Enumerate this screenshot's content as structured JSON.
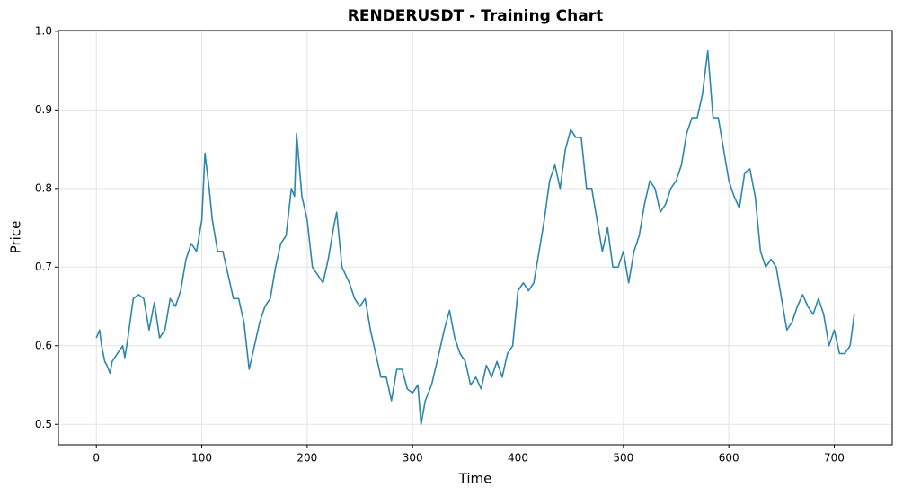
{
  "chart_data": {
    "type": "line",
    "title": "RENDERUSDT - Training Chart",
    "x_label": "Time",
    "y_label": "Price",
    "x": [
      0,
      3,
      5,
      8,
      10,
      13,
      15,
      20,
      25,
      27,
      30,
      35,
      40,
      45,
      50,
      55,
      60,
      65,
      70,
      75,
      80,
      85,
      90,
      95,
      100,
      103,
      107,
      110,
      115,
      120,
      125,
      130,
      135,
      140,
      145,
      150,
      155,
      160,
      165,
      170,
      175,
      180,
      185,
      188,
      190,
      195,
      200,
      205,
      210,
      215,
      220,
      225,
      228,
      233,
      240,
      245,
      250,
      255,
      260,
      265,
      270,
      275,
      280,
      285,
      290,
      295,
      300,
      305,
      308,
      312,
      318,
      325,
      330,
      335,
      340,
      345,
      350,
      355,
      360,
      365,
      370,
      375,
      380,
      385,
      390,
      395,
      400,
      405,
      410,
      415,
      420,
      425,
      430,
      435,
      440,
      445,
      450,
      455,
      460,
      465,
      470,
      475,
      480,
      485,
      490,
      495,
      500,
      505,
      510,
      515,
      520,
      525,
      530,
      535,
      540,
      545,
      550,
      555,
      560,
      565,
      570,
      575,
      580,
      585,
      590,
      595,
      600,
      605,
      610,
      615,
      620,
      625,
      630,
      635,
      640,
      645,
      650,
      655,
      660,
      665,
      670,
      675,
      680,
      685,
      690,
      695,
      700,
      705,
      710,
      715,
      719
    ],
    "series": [
      {
        "name": "RENDERUSDT",
        "color": "#2e86ab",
        "values": [
          0.61,
          0.62,
          0.6,
          0.58,
          0.575,
          0.565,
          0.58,
          0.59,
          0.6,
          0.585,
          0.61,
          0.66,
          0.665,
          0.66,
          0.62,
          0.655,
          0.61,
          0.62,
          0.66,
          0.65,
          0.67,
          0.71,
          0.73,
          0.72,
          0.76,
          0.845,
          0.8,
          0.76,
          0.72,
          0.72,
          0.69,
          0.66,
          0.66,
          0.63,
          0.57,
          0.6,
          0.63,
          0.65,
          0.66,
          0.7,
          0.73,
          0.74,
          0.8,
          0.79,
          0.87,
          0.79,
          0.76,
          0.7,
          0.69,
          0.68,
          0.71,
          0.75,
          0.77,
          0.7,
          0.68,
          0.66,
          0.65,
          0.66,
          0.62,
          0.59,
          0.56,
          0.56,
          0.53,
          0.57,
          0.57,
          0.545,
          0.54,
          0.55,
          0.5,
          0.53,
          0.55,
          0.59,
          0.62,
          0.645,
          0.61,
          0.59,
          0.58,
          0.55,
          0.56,
          0.545,
          0.575,
          0.56,
          0.58,
          0.56,
          0.59,
          0.6,
          0.67,
          0.68,
          0.67,
          0.68,
          0.72,
          0.76,
          0.81,
          0.83,
          0.8,
          0.85,
          0.875,
          0.865,
          0.865,
          0.8,
          0.8,
          0.76,
          0.72,
          0.75,
          0.7,
          0.7,
          0.72,
          0.68,
          0.72,
          0.74,
          0.78,
          0.81,
          0.8,
          0.77,
          0.78,
          0.8,
          0.81,
          0.83,
          0.87,
          0.89,
          0.89,
          0.92,
          0.975,
          0.89,
          0.89,
          0.85,
          0.81,
          0.79,
          0.775,
          0.82,
          0.825,
          0.79,
          0.72,
          0.7,
          0.71,
          0.7,
          0.66,
          0.62,
          0.63,
          0.65,
          0.665,
          0.65,
          0.64,
          0.66,
          0.64,
          0.6,
          0.62,
          0.59,
          0.59,
          0.6,
          0.64
        ]
      }
    ],
    "xlim": [
      -36,
      755
    ],
    "ylim": [
      0.474,
      1.001
    ],
    "xticks": [
      0,
      100,
      200,
      300,
      400,
      500,
      600,
      700
    ],
    "yticks": [
      0.5,
      0.6,
      0.7,
      0.8,
      0.9,
      {
        "value": 1,
        "label": "1.0"
      }
    ],
    "grid": true
  }
}
